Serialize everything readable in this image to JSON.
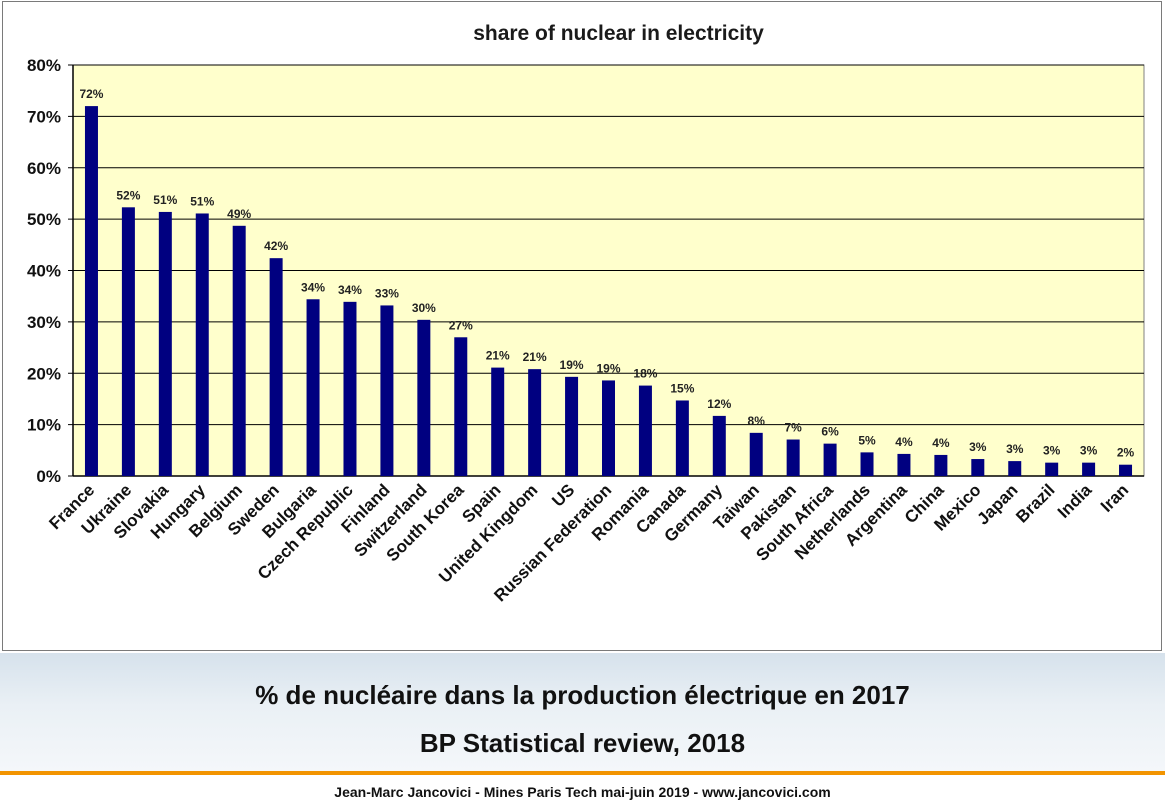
{
  "caption": {
    "line1": "% de nucléaire dans la production électrique en 2017",
    "line2": "BP Statistical review, 2018"
  },
  "footer": {
    "text": "Jean-Marc Jancovici - Mines Paris Tech mai-juin 2019 - www.jancovici.com"
  },
  "colors": {
    "bar": "#000080",
    "plot_background": "#ffffcc",
    "gridline": "#000000",
    "accent_rule": "#f29400"
  },
  "chart_data": {
    "type": "bar",
    "title": "share of nuclear in electricity",
    "xlabel": "",
    "ylabel": "",
    "ylim": [
      0,
      80
    ],
    "yticks": [
      0,
      10,
      20,
      30,
      40,
      50,
      60,
      70,
      80
    ],
    "ytick_suffix": "%",
    "grid": true,
    "legend": "none",
    "categories": [
      "France",
      "Ukraine",
      "Slovakia",
      "Hungary",
      "Belgium",
      "Sweden",
      "Bulgaria",
      "Czech Republic",
      "Finland",
      "Switzerland",
      "South Korea",
      "Spain",
      "United Kingdom",
      "US",
      "Russian Federation",
      "Romania",
      "Canada",
      "Germany",
      "Taiwan",
      "Pakistan",
      "South Africa",
      "Netherlands",
      "Argentina",
      "China",
      "Mexico",
      "Japan",
      "Brazil",
      "India",
      "Iran"
    ],
    "values": [
      72.0,
      52.3,
      51.4,
      51.1,
      48.7,
      42.4,
      34.4,
      33.9,
      33.2,
      30.4,
      27.0,
      21.1,
      20.8,
      19.3,
      18.6,
      17.6,
      14.7,
      11.7,
      8.4,
      7.1,
      6.3,
      4.6,
      4.3,
      4.1,
      3.3,
      2.9,
      2.6,
      2.6,
      2.2
    ],
    "data_labels": [
      "72%",
      "52%",
      "51%",
      "51%",
      "49%",
      "42%",
      "34%",
      "34%",
      "33%",
      "30%",
      "27%",
      "21%",
      "21%",
      "19%",
      "19%",
      "18%",
      "15%",
      "12%",
      "8%",
      "7%",
      "6%",
      "5%",
      "4%",
      "4%",
      "3%",
      "3%",
      "3%",
      "3%",
      "2%"
    ]
  }
}
